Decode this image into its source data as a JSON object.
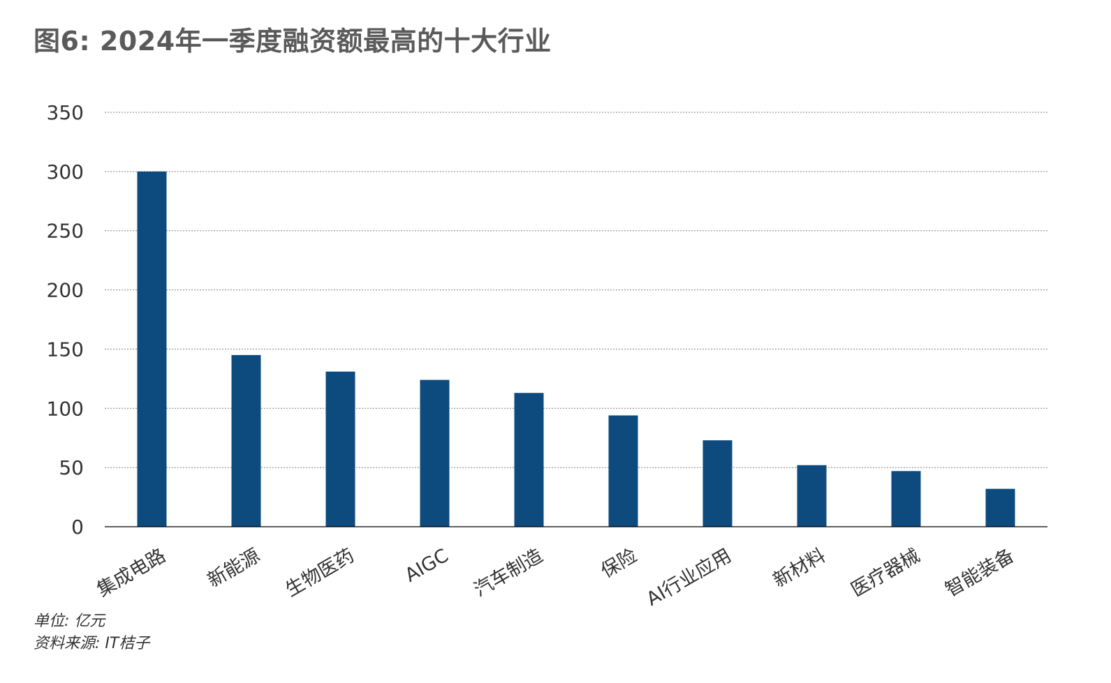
{
  "title": "图6: 2024年一季度融资额最高的十大行业",
  "footnotes": {
    "unit": "单位: 亿元",
    "source": "资料来源: IT桔子"
  },
  "colors": {
    "bar": "#0d4a7d",
    "grid": "#808080",
    "axis": "#000000",
    "text": "#333333",
    "title": "#5a5a5a"
  },
  "chart_data": {
    "type": "bar",
    "title": "图6: 2024年一季度融资额最高的十大行业",
    "xlabel": "",
    "ylabel": "",
    "ylim": [
      0,
      350
    ],
    "yticks": [
      0,
      50,
      100,
      150,
      200,
      250,
      300,
      350
    ],
    "grid": true,
    "legend": "none",
    "categories": [
      "集成电路",
      "新能源",
      "生物医药",
      "AIGC",
      "汽车制造",
      "保险",
      "AI行业应用",
      "新材料",
      "医疗器械",
      "智能装备"
    ],
    "values": [
      300,
      145,
      131,
      124,
      113,
      94,
      73,
      52,
      47,
      32
    ]
  }
}
